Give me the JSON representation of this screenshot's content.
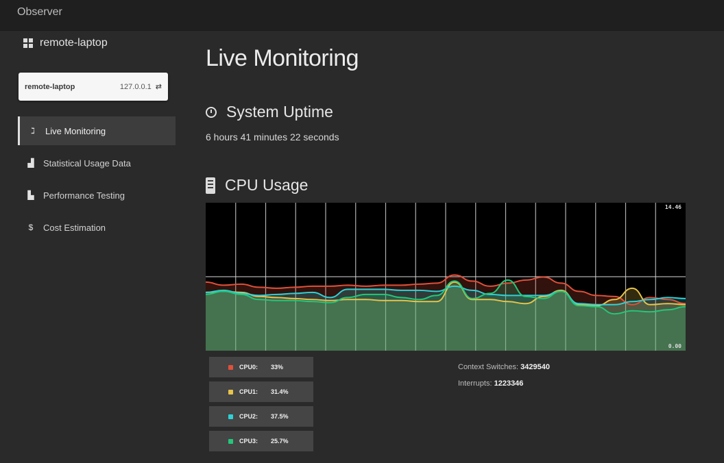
{
  "app": {
    "title": "Observer"
  },
  "sidebar": {
    "host_label": "remote-laptop",
    "host_card": {
      "name": "remote-laptop",
      "ip": "127.0.0.1",
      "switch_icon": "swap-icon"
    },
    "items": [
      {
        "label": "Live Monitoring",
        "icon": "rss-icon",
        "active": true
      },
      {
        "label": "Statistical Usage Data",
        "icon": "chart-icon",
        "active": false
      },
      {
        "label": "Performance Testing",
        "icon": "car-icon",
        "active": false
      },
      {
        "label": "Cost Estimation",
        "icon": "dollar-icon",
        "active": false
      }
    ]
  },
  "main": {
    "title": "Live Monitoring",
    "uptime_section": {
      "title": "System Uptime",
      "value": "6 hours 41 minutes 22 seconds"
    },
    "cpu_section": {
      "title": "CPU Usage"
    },
    "stats": {
      "context_switches_label": "Context Switches:",
      "context_switches_value": "3429540",
      "interrupts_label": "Interrupts:",
      "interrupts_value": "1223346"
    }
  },
  "chart_data": {
    "type": "area",
    "title": "",
    "y_max_label": "14.46",
    "y_min_label": "0.00",
    "ylim": [
      0,
      14.46
    ],
    "grid": true,
    "colors": {
      "background": "#000000",
      "grid": "#cfcfcf"
    },
    "series": [
      {
        "name": "CPU0:",
        "value_label": "33%",
        "color": "#e0503a",
        "values": [
          6.7,
          6.4,
          6.5,
          6.2,
          6.1,
          6.2,
          6.3,
          6.3,
          6.4,
          6.3,
          6.4,
          6.4,
          6.5,
          6.6,
          7.4,
          6.8,
          6.3,
          6.6,
          6.9,
          7.2,
          6.6,
          5.8,
          5.4,
          5.3,
          4.5,
          5.2,
          5.0,
          4.6
        ]
      },
      {
        "name": "CPU1:",
        "value_label": "31.4%",
        "color": "#e6c34a",
        "values": [
          5.7,
          5.8,
          5.7,
          5.3,
          5.2,
          5.1,
          5.0,
          4.9,
          5.0,
          5.0,
          4.9,
          4.9,
          4.8,
          4.8,
          6.7,
          5.0,
          5.0,
          4.8,
          4.6,
          5.3,
          5.9,
          4.5,
          4.4,
          5.0,
          6.1,
          4.5,
          4.6,
          4.5
        ]
      },
      {
        "name": "CPU2:",
        "value_label": "37.5%",
        "color": "#2ed1d6",
        "values": [
          5.7,
          5.9,
          5.6,
          5.4,
          5.5,
          5.6,
          5.7,
          5.2,
          6.0,
          6.0,
          6.0,
          5.9,
          5.9,
          5.8,
          6.3,
          5.9,
          5.5,
          5.4,
          5.4,
          5.4,
          5.8,
          4.6,
          4.5,
          4.5,
          4.8,
          5.0,
          5.2,
          5.1
        ]
      },
      {
        "name": "CPU3:",
        "value_label": "25.7%",
        "color": "#23c77a",
        "values": [
          5.5,
          5.8,
          5.5,
          5.0,
          4.9,
          4.9,
          4.8,
          4.7,
          5.2,
          5.5,
          5.5,
          5.2,
          5.0,
          5.4,
          6.8,
          5.1,
          5.6,
          6.9,
          5.3,
          5.1,
          5.8,
          4.4,
          4.3,
          3.6,
          3.9,
          3.8,
          4.0,
          4.3
        ]
      }
    ]
  }
}
